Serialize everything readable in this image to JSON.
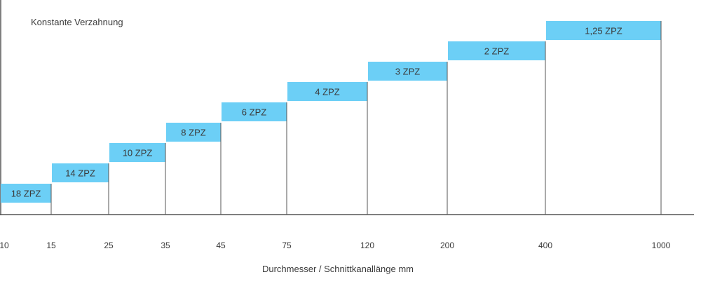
{
  "chart_data": {
    "type": "bar",
    "title": "Konstante Verzahnung",
    "xlabel": "Durchmesser / Schnittkanallänge mm",
    "ylabel": "",
    "x_ticks": [
      "10",
      "15",
      "25",
      "35",
      "45",
      "75",
      "120",
      "200",
      "400",
      "1000"
    ],
    "bars": [
      {
        "from": "10",
        "to": "15",
        "level": 1,
        "label": "18 ZPZ"
      },
      {
        "from": "15",
        "to": "25",
        "level": 2,
        "label": "14 ZPZ"
      },
      {
        "from": "25",
        "to": "35",
        "level": 3,
        "label": "10 ZPZ"
      },
      {
        "from": "35",
        "to": "45",
        "level": 4,
        "label": "8 ZPZ"
      },
      {
        "from": "45",
        "to": "75",
        "level": 5,
        "label": "6 ZPZ"
      },
      {
        "from": "75",
        "to": "120",
        "level": 6,
        "label": "4 ZPZ"
      },
      {
        "from": "120",
        "to": "200",
        "level": 7,
        "label": "3 ZPZ"
      },
      {
        "from": "200",
        "to": "400",
        "level": 8,
        "label": "2 ZPZ"
      },
      {
        "from": "400",
        "to": "1000",
        "level": 9,
        "label": "1,25 ZPZ"
      }
    ],
    "bar_color": "#6ccff6",
    "axis_color": "#555555",
    "grid": false,
    "legend": "none"
  }
}
